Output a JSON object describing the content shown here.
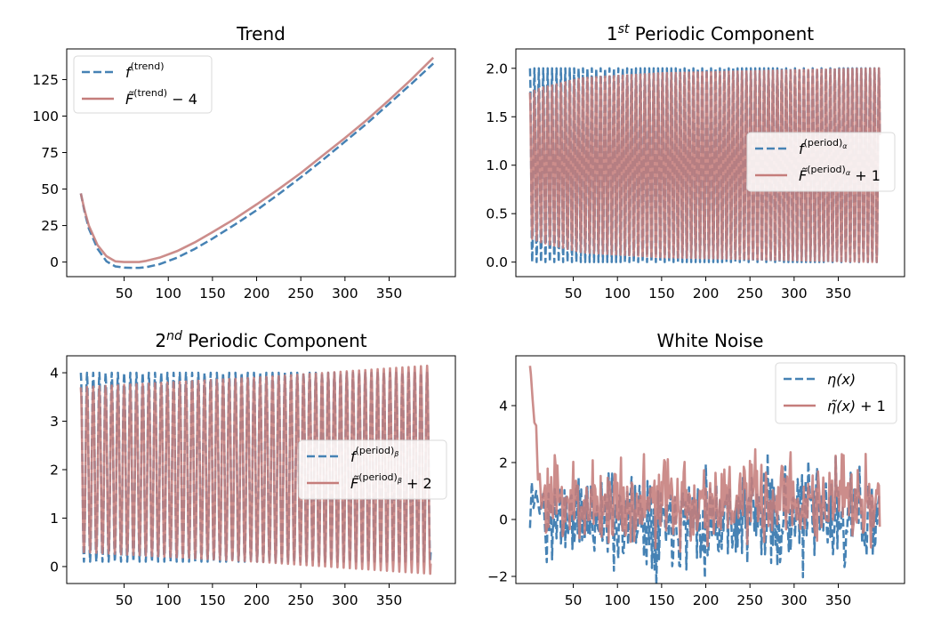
{
  "colors": {
    "blue": "#4682b4",
    "red": "#c57d7b"
  },
  "chart_data": [
    {
      "type": "line",
      "title": "Trend",
      "xlim": [
        -15,
        425
      ],
      "ylim": [
        -10,
        146
      ],
      "xticks": [
        50,
        100,
        150,
        200,
        250,
        300,
        350
      ],
      "yticks": [
        0,
        25,
        50,
        75,
        100,
        125
      ],
      "ytick_labels": [
        "0",
        "25",
        "50",
        "75",
        "100",
        "125"
      ],
      "legend_loc": "upper left",
      "series": [
        {
          "name": "f^{(trend)}",
          "legend": {
            "base": "f",
            "sup": "(trend)",
            "tail": ""
          },
          "style": "dashed",
          "color": "blue",
          "x": [
            1,
            5,
            10,
            20,
            30,
            40,
            50,
            60,
            67,
            75,
            90,
            110,
            130,
            150,
            175,
            200,
            225,
            250,
            275,
            300,
            325,
            350,
            375,
            400
          ],
          "y": [
            47,
            35,
            23,
            9,
            0.5,
            -3,
            -3.8,
            -4,
            -4,
            -3.5,
            -1.5,
            3,
            9,
            16,
            25.5,
            35.5,
            46.5,
            58,
            70,
            82.5,
            95,
            108.5,
            122,
            136
          ]
        },
        {
          "name": "F~^{(trend)} - 4",
          "legend": {
            "base": "F̃",
            "sup": "(trend)",
            "tail": " − 4"
          },
          "style": "solid",
          "color": "red",
          "x": [
            1,
            5,
            10,
            20,
            30,
            40,
            50,
            60,
            67,
            75,
            90,
            110,
            130,
            150,
            175,
            200,
            225,
            250,
            275,
            300,
            325,
            350,
            375,
            400
          ],
          "y": [
            47,
            36,
            25,
            11.5,
            4,
            0.5,
            0,
            0,
            0,
            0.8,
            3,
            7.5,
            13.5,
            20.5,
            29.5,
            39.5,
            50,
            61,
            73,
            85,
            97.5,
            111,
            125,
            140
          ]
        }
      ]
    },
    {
      "type": "line",
      "title": "1^{st} Periodic Component",
      "title_parts": {
        "pre": "1",
        "sup": "st",
        "post": " Periodic Component"
      },
      "xlim": [
        -15,
        425
      ],
      "ylim": [
        -0.15,
        2.2
      ],
      "xticks": [
        50,
        100,
        150,
        200,
        250,
        300,
        350
      ],
      "yticks": [
        0,
        0.5,
        1,
        1.5,
        2
      ],
      "ytick_labels": [
        "0.0",
        "0.5",
        "1.0",
        "1.5",
        "2.0"
      ],
      "legend_loc": "center right",
      "series": [
        {
          "name": "f^{(period)_α}",
          "legend": {
            "base": "f",
            "sup": "(period)",
            "sub2": "α",
            "tail": ""
          },
          "style": "dashed",
          "color": "blue",
          "kind": "oscillation",
          "x_start": 1,
          "x_end": 397,
          "period": 5,
          "center": 1.0,
          "amp_x": [
            1,
            60,
            397
          ],
          "amp": [
            1.0,
            1.0,
            1.0
          ]
        },
        {
          "name": "F~^{(period)_α} + 1",
          "legend": {
            "base": "F̃",
            "sup": "(period)",
            "sub2": "α",
            "tail": " + 1"
          },
          "style": "solid",
          "color": "red",
          "kind": "oscillation",
          "x_start": 1,
          "x_end": 397,
          "period": 5,
          "center": 1.0,
          "amp_x": [
            1,
            15,
            60,
            150,
            397
          ],
          "amp": [
            0.75,
            0.8,
            0.9,
            0.95,
            1.0
          ]
        }
      ]
    },
    {
      "type": "line",
      "title": "2^{nd} Periodic Component",
      "title_parts": {
        "pre": "2",
        "sup": "nd",
        "post": " Periodic Component"
      },
      "xlim": [
        -15,
        425
      ],
      "ylim": [
        -0.35,
        4.35
      ],
      "xticks": [
        50,
        100,
        150,
        200,
        250,
        300,
        350
      ],
      "yticks": [
        0,
        1,
        2,
        3,
        4
      ],
      "ytick_labels": [
        "0",
        "1",
        "2",
        "3",
        "4"
      ],
      "legend_loc": "center right",
      "series": [
        {
          "name": "f^{(period)_β}",
          "legend": {
            "base": "f",
            "sup": "(period)",
            "sub2": "β",
            "tail": ""
          },
          "style": "dashed",
          "color": "blue",
          "kind": "oscillation",
          "x_start": 1,
          "x_end": 397,
          "period": 7,
          "center": 2.05,
          "amp_x": [
            1,
            397
          ],
          "amp": [
            1.95,
            1.95
          ]
        },
        {
          "name": "F~^{(period)_β} + 2",
          "legend": {
            "base": "F̃",
            "sup": "(period)",
            "sub2": "β",
            "tail": " + 2"
          },
          "style": "solid",
          "color": "red",
          "kind": "oscillation",
          "x_start": 1,
          "x_end": 397,
          "period": 7,
          "center": 2.0,
          "amp_x": [
            1,
            50,
            200,
            397
          ],
          "amp": [
            1.7,
            1.75,
            1.9,
            2.15
          ]
        }
      ]
    },
    {
      "type": "line",
      "title": "White Noise",
      "xlim": [
        -15,
        425
      ],
      "ylim": [
        -2.25,
        5.75
      ],
      "xticks": [
        50,
        100,
        150,
        200,
        250,
        300,
        350
      ],
      "yticks": [
        -2,
        0,
        2,
        4
      ],
      "ytick_labels": [
        "−2",
        "0",
        "2",
        "4"
      ],
      "legend_loc": "upper right",
      "series": [
        {
          "name": "η(x)",
          "legend": {
            "base": "η(x)",
            "sup": "",
            "tail": ""
          },
          "style": "dashed",
          "color": "blue",
          "kind": "noise",
          "x_start": 1,
          "x_end": 397,
          "step": 1,
          "center": 0.1,
          "spread": 0.85,
          "seed": 11,
          "x": [
            1,
            3,
            5,
            8,
            12,
            16,
            20
          ],
          "y": [
            -0.3,
            1.3,
            0.4,
            1.0,
            0.2,
            0.9,
            -1.5
          ]
        },
        {
          "name": "η~(x) + 1",
          "legend": {
            "base": "η̃(x)",
            "sup": "",
            "tail": " + 1"
          },
          "style": "solid",
          "color": "red",
          "kind": "noise",
          "x_start": 1,
          "x_end": 397,
          "step": 1,
          "center": 0.6,
          "spread": 0.75,
          "seed": 23,
          "x": [
            1,
            2,
            4,
            6,
            8,
            10,
            12,
            14,
            18
          ],
          "y": [
            5.4,
            5.1,
            4.2,
            3.4,
            3.3,
            1.4,
            1.6,
            0.4,
            1.2
          ]
        }
      ]
    }
  ]
}
